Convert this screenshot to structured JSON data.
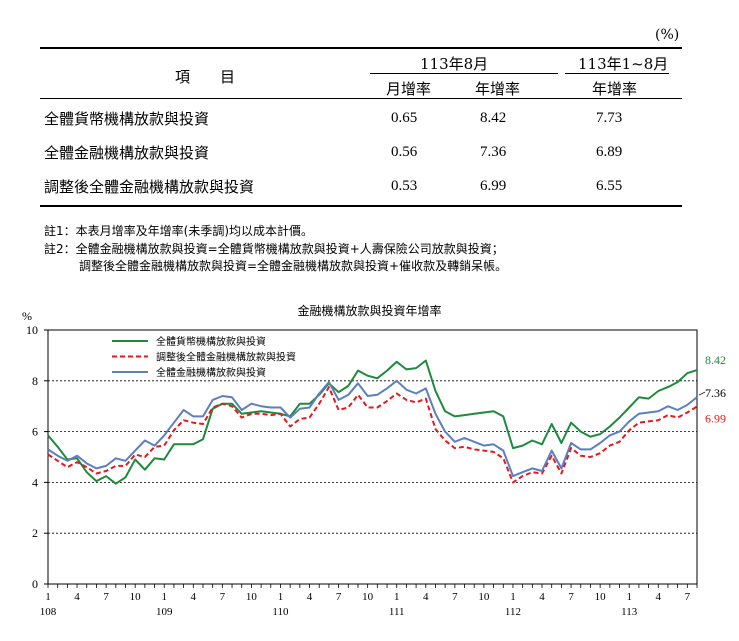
{
  "table": {
    "unit": "(%)",
    "col_item": "項　　目",
    "group1": "113年8月",
    "group2": "113年1~8月",
    "sub_month": "月增率",
    "sub_year1": "年增率",
    "sub_year2": "年增率",
    "rows": [
      {
        "label": "全體貨幣機構放款與投資",
        "month": "0.65",
        "year": "8.42",
        "ytd": "7.73"
      },
      {
        "label": "全體金融機構放款與投資",
        "month": "0.56",
        "year": "7.36",
        "ytd": "6.89"
      },
      {
        "label": "調整後全體金融機構放款與投資",
        "month": "0.53",
        "year": "6.99",
        "ytd": "6.55"
      }
    ]
  },
  "notes": [
    "註1：本表月增率及年增率(未季調)均以成本計價。",
    "註2：全體金融機構放款與投資=全體貨幣機構放款與投資+人壽保險公司放款與投資；",
    "調整後全體金融機構放款與投資=全體金融機構放款與投資+催收款及轉銷呆帳。"
  ],
  "chart_data": {
    "type": "line",
    "title": "金融機構放款與投資年增率",
    "ylabel": "%",
    "ylim": [
      0,
      10
    ],
    "yticks": [
      "0",
      "2",
      "4",
      "6",
      "8",
      "10"
    ],
    "grid": "horizontal dashed",
    "legend": "top-left",
    "x_month_labels": [
      "1",
      "4",
      "7",
      "10",
      "1",
      "4",
      "7",
      "10",
      "1",
      "4",
      "7",
      "10",
      "1",
      "4",
      "7",
      "10",
      "1",
      "4",
      "7",
      "10",
      "1",
      "4",
      "7"
    ],
    "x_year_labels": [
      {
        "label": "108",
        "index": 0
      },
      {
        "label": "109",
        "index": 12
      },
      {
        "label": "110",
        "index": 24
      },
      {
        "label": "111",
        "index": 36
      },
      {
        "label": "112",
        "index": 48
      },
      {
        "label": "113",
        "index": 60
      }
    ],
    "series": [
      {
        "name": "全體貨幣機構放款與投資",
        "color": "#1e8a3c",
        "end_label": "8.42",
        "values": [
          5.85,
          5.4,
          4.9,
          4.95,
          4.4,
          4.05,
          4.25,
          3.95,
          4.2,
          4.9,
          4.5,
          4.95,
          4.9,
          5.5,
          5.5,
          5.5,
          5.7,
          6.9,
          7.1,
          7.1,
          6.7,
          6.75,
          6.8,
          6.75,
          6.7,
          6.6,
          7.1,
          7.1,
          7.45,
          7.9,
          7.55,
          7.8,
          8.4,
          8.2,
          8.1,
          8.4,
          8.75,
          8.45,
          8.5,
          8.8,
          7.6,
          6.8,
          6.6,
          6.65,
          6.7,
          6.75,
          6.8,
          6.6,
          5.35,
          5.45,
          5.65,
          5.5,
          6.3,
          5.55,
          6.35,
          6.0,
          5.8,
          5.9,
          6.2,
          6.55,
          6.95,
          7.35,
          7.3,
          7.6,
          7.75,
          7.95,
          8.3,
          8.42
        ]
      },
      {
        "name": "調整後全體金融機構放款與投資",
        "color": "#e41a1c",
        "dashed": true,
        "end_label": "6.99",
        "values": [
          5.1,
          4.85,
          4.6,
          4.8,
          4.6,
          4.35,
          4.45,
          4.65,
          4.65,
          5.1,
          5.0,
          5.4,
          5.45,
          6.05,
          6.45,
          6.35,
          6.3,
          6.95,
          7.1,
          7.0,
          6.55,
          6.7,
          6.7,
          6.65,
          6.7,
          6.2,
          6.5,
          6.55,
          7.1,
          7.75,
          6.85,
          6.95,
          7.45,
          6.95,
          6.95,
          7.2,
          7.5,
          7.25,
          7.15,
          7.3,
          6.1,
          5.65,
          5.35,
          5.4,
          5.3,
          5.25,
          5.2,
          4.95,
          4.0,
          4.25,
          4.4,
          4.35,
          5.05,
          4.35,
          5.35,
          5.05,
          5.0,
          5.15,
          5.45,
          5.6,
          6.05,
          6.35,
          6.4,
          6.45,
          6.65,
          6.55,
          6.75,
          6.99
        ]
      },
      {
        "name": "全體金融機構放款與投資",
        "color": "#5b7fbf",
        "end_label": "7.36",
        "values": [
          5.3,
          5.05,
          4.85,
          5.05,
          4.75,
          4.55,
          4.65,
          4.95,
          4.85,
          5.25,
          5.65,
          5.45,
          5.85,
          6.35,
          6.85,
          6.6,
          6.6,
          7.25,
          7.4,
          7.35,
          6.85,
          7.1,
          7.0,
          6.95,
          6.95,
          6.55,
          6.9,
          6.95,
          7.5,
          7.95,
          7.25,
          7.45,
          7.9,
          7.4,
          7.45,
          7.7,
          8.0,
          7.65,
          7.5,
          7.7,
          6.7,
          6.0,
          5.6,
          5.75,
          5.6,
          5.45,
          5.5,
          5.25,
          4.25,
          4.4,
          4.55,
          4.45,
          5.25,
          4.55,
          5.55,
          5.3,
          5.3,
          5.55,
          5.85,
          6.0,
          6.4,
          6.7,
          6.75,
          6.8,
          7.0,
          6.85,
          7.05,
          7.36
        ]
      }
    ]
  }
}
